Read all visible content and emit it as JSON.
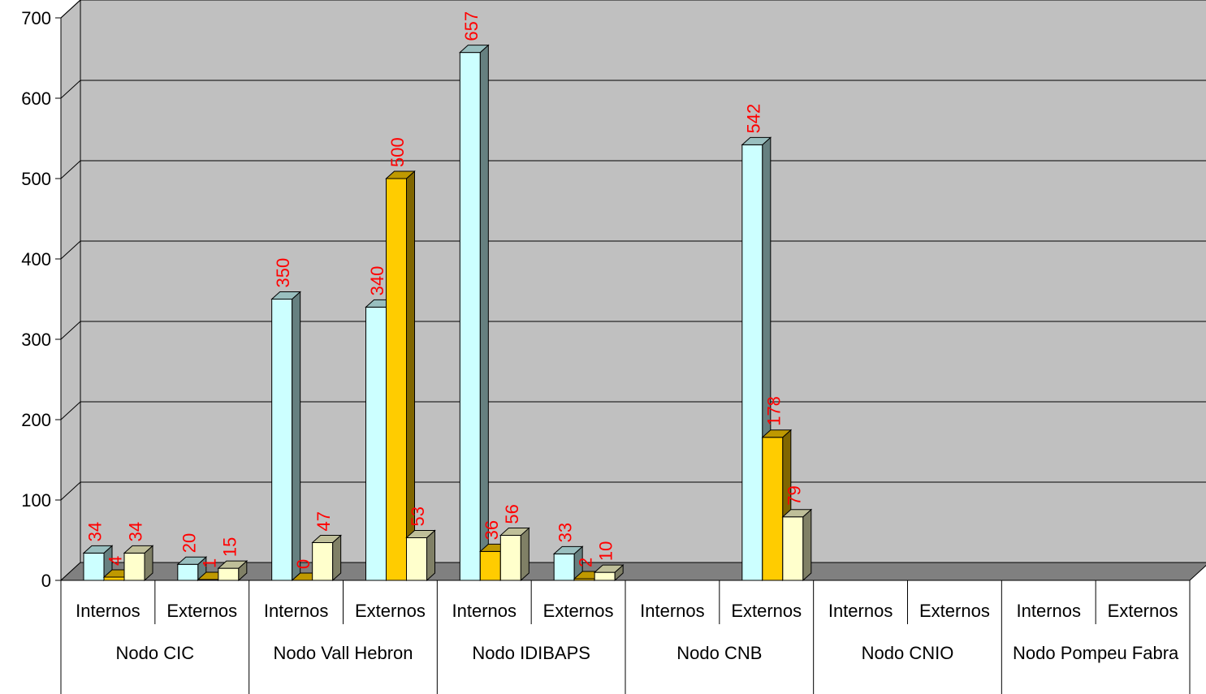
{
  "chart_data": {
    "type": "bar",
    "title": "",
    "xlabel": "",
    "ylabel": "",
    "ylim": [
      0,
      700
    ],
    "yticks": [
      0,
      100,
      200,
      300,
      400,
      500,
      600,
      700
    ],
    "grid": true,
    "groups": [
      {
        "label": "Nodo CIC",
        "subcategories": [
          "Internos",
          "Externos"
        ]
      },
      {
        "label": "Nodo Vall Hebron",
        "subcategories": [
          "Internos",
          "Externos"
        ]
      },
      {
        "label": "Nodo IDIBAPS",
        "subcategories": [
          "Internos",
          "Externos"
        ]
      },
      {
        "label": "Nodo CNB",
        "subcategories": [
          "Internos",
          "Externos"
        ]
      },
      {
        "label": "Nodo CNIO",
        "subcategories": [
          "Internos",
          "Externos"
        ]
      },
      {
        "label": "Nodo Pompeu Fabra",
        "subcategories": [
          "Internos",
          "Externos"
        ]
      }
    ],
    "series": [
      {
        "color": "#ccffff",
        "values": [
          34,
          20,
          350,
          340,
          657,
          33,
          null,
          542,
          null,
          null,
          null,
          null
        ]
      },
      {
        "color": "#ffcc00",
        "values": [
          4,
          1,
          0,
          500,
          36,
          2,
          null,
          178,
          null,
          null,
          null,
          null
        ]
      },
      {
        "color": "#ffffcc",
        "values": [
          34,
          15,
          47,
          53,
          56,
          10,
          null,
          79,
          null,
          null,
          null,
          null
        ]
      }
    ],
    "colors": {
      "wall": "#c0c0c0",
      "floor": "#808080",
      "label": "#ff0000"
    }
  }
}
